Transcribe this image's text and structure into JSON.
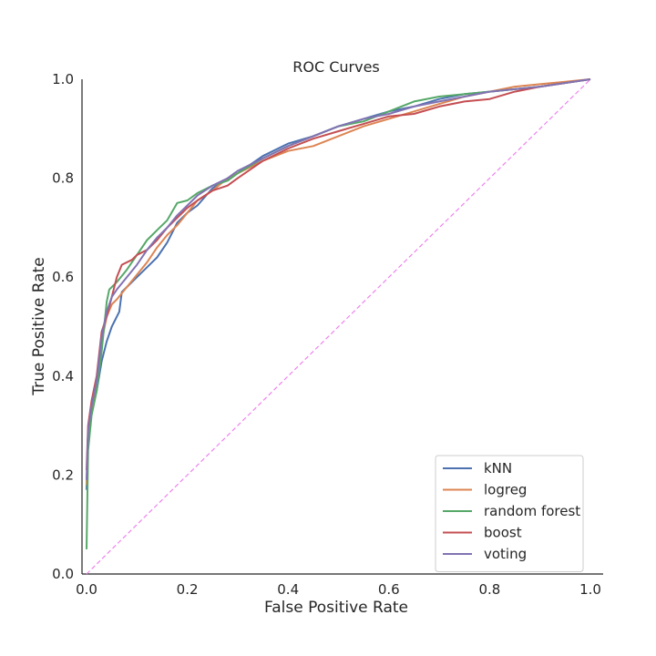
{
  "chart_data": {
    "type": "line",
    "title": "ROC Curves",
    "xlabel": "False Positive Rate",
    "ylabel": "True Positive Rate",
    "xlim": [
      0,
      1
    ],
    "ylim": [
      0,
      1
    ],
    "x_ticks": [
      "0.0",
      "0.2",
      "0.4",
      "0.6",
      "0.8",
      "1.0"
    ],
    "y_ticks": [
      "0.0",
      "0.2",
      "0.4",
      "0.6",
      "0.8",
      "1.0"
    ],
    "grid": false,
    "legend_position": "bottom-right",
    "diagonal": {
      "color": "#ee82ee",
      "style": "dashed",
      "points": [
        [
          0,
          0
        ],
        [
          1,
          1
        ]
      ]
    },
    "series": [
      {
        "name": "kNN",
        "color": "#4c72b0",
        "points": [
          [
            0,
            0.17
          ],
          [
            0.003,
            0.29
          ],
          [
            0.01,
            0.33
          ],
          [
            0.02,
            0.37
          ],
          [
            0.03,
            0.43
          ],
          [
            0.04,
            0.47
          ],
          [
            0.05,
            0.5
          ],
          [
            0.06,
            0.52
          ],
          [
            0.065,
            0.53
          ],
          [
            0.07,
            0.57
          ],
          [
            0.08,
            0.58
          ],
          [
            0.1,
            0.6
          ],
          [
            0.12,
            0.62
          ],
          [
            0.14,
            0.64
          ],
          [
            0.16,
            0.67
          ],
          [
            0.18,
            0.71
          ],
          [
            0.2,
            0.73
          ],
          [
            0.22,
            0.745
          ],
          [
            0.25,
            0.78
          ],
          [
            0.3,
            0.81
          ],
          [
            0.35,
            0.845
          ],
          [
            0.4,
            0.87
          ],
          [
            0.45,
            0.885
          ],
          [
            0.5,
            0.905
          ],
          [
            0.55,
            0.92
          ],
          [
            0.6,
            0.935
          ],
          [
            0.65,
            0.945
          ],
          [
            0.7,
            0.96
          ],
          [
            0.75,
            0.97
          ],
          [
            0.8,
            0.975
          ],
          [
            0.85,
            0.98
          ],
          [
            0.9,
            0.985
          ],
          [
            1.0,
            1.0
          ]
        ]
      },
      {
        "name": "logreg",
        "color": "#dd8452",
        "points": [
          [
            0,
            0.18
          ],
          [
            0.003,
            0.28
          ],
          [
            0.01,
            0.33
          ],
          [
            0.02,
            0.38
          ],
          [
            0.03,
            0.47
          ],
          [
            0.04,
            0.52
          ],
          [
            0.05,
            0.545
          ],
          [
            0.06,
            0.555
          ],
          [
            0.08,
            0.58
          ],
          [
            0.1,
            0.605
          ],
          [
            0.12,
            0.63
          ],
          [
            0.14,
            0.66
          ],
          [
            0.16,
            0.685
          ],
          [
            0.18,
            0.705
          ],
          [
            0.2,
            0.73
          ],
          [
            0.22,
            0.755
          ],
          [
            0.25,
            0.775
          ],
          [
            0.28,
            0.8
          ],
          [
            0.3,
            0.81
          ],
          [
            0.35,
            0.835
          ],
          [
            0.4,
            0.855
          ],
          [
            0.45,
            0.865
          ],
          [
            0.5,
            0.885
          ],
          [
            0.55,
            0.905
          ],
          [
            0.6,
            0.92
          ],
          [
            0.65,
            0.935
          ],
          [
            0.7,
            0.95
          ],
          [
            0.75,
            0.965
          ],
          [
            0.8,
            0.975
          ],
          [
            0.85,
            0.985
          ],
          [
            0.9,
            0.99
          ],
          [
            0.95,
            0.995
          ],
          [
            1.0,
            1.0
          ]
        ]
      },
      {
        "name": "random forest",
        "color": "#55a868",
        "points": [
          [
            0,
            0.05
          ],
          [
            0.003,
            0.25
          ],
          [
            0.01,
            0.32
          ],
          [
            0.02,
            0.37
          ],
          [
            0.03,
            0.45
          ],
          [
            0.04,
            0.55
          ],
          [
            0.045,
            0.575
          ],
          [
            0.06,
            0.59
          ],
          [
            0.08,
            0.615
          ],
          [
            0.1,
            0.645
          ],
          [
            0.12,
            0.675
          ],
          [
            0.14,
            0.695
          ],
          [
            0.16,
            0.715
          ],
          [
            0.18,
            0.75
          ],
          [
            0.2,
            0.755
          ],
          [
            0.22,
            0.77
          ],
          [
            0.25,
            0.785
          ],
          [
            0.28,
            0.795
          ],
          [
            0.3,
            0.81
          ],
          [
            0.35,
            0.84
          ],
          [
            0.4,
            0.865
          ],
          [
            0.45,
            0.885
          ],
          [
            0.5,
            0.905
          ],
          [
            0.55,
            0.915
          ],
          [
            0.6,
            0.935
          ],
          [
            0.65,
            0.955
          ],
          [
            0.7,
            0.965
          ],
          [
            0.75,
            0.97
          ],
          [
            0.8,
            0.975
          ],
          [
            0.85,
            0.98
          ],
          [
            0.9,
            0.985
          ],
          [
            1.0,
            1.0
          ]
        ]
      },
      {
        "name": "boost",
        "color": "#c44e52",
        "points": [
          [
            0,
            0.21
          ],
          [
            0.003,
            0.3
          ],
          [
            0.01,
            0.35
          ],
          [
            0.02,
            0.4
          ],
          [
            0.03,
            0.49
          ],
          [
            0.04,
            0.52
          ],
          [
            0.05,
            0.56
          ],
          [
            0.06,
            0.6
          ],
          [
            0.07,
            0.625
          ],
          [
            0.09,
            0.635
          ],
          [
            0.1,
            0.645
          ],
          [
            0.12,
            0.655
          ],
          [
            0.14,
            0.675
          ],
          [
            0.16,
            0.7
          ],
          [
            0.18,
            0.72
          ],
          [
            0.2,
            0.74
          ],
          [
            0.22,
            0.755
          ],
          [
            0.25,
            0.775
          ],
          [
            0.28,
            0.785
          ],
          [
            0.3,
            0.8
          ],
          [
            0.35,
            0.835
          ],
          [
            0.4,
            0.86
          ],
          [
            0.45,
            0.88
          ],
          [
            0.5,
            0.895
          ],
          [
            0.55,
            0.91
          ],
          [
            0.6,
            0.925
          ],
          [
            0.65,
            0.93
          ],
          [
            0.7,
            0.945
          ],
          [
            0.75,
            0.955
          ],
          [
            0.8,
            0.96
          ],
          [
            0.85,
            0.975
          ],
          [
            0.9,
            0.985
          ],
          [
            1.0,
            1.0
          ]
        ]
      },
      {
        "name": "voting",
        "color": "#8172b3",
        "points": [
          [
            0,
            0.19
          ],
          [
            0.003,
            0.29
          ],
          [
            0.01,
            0.34
          ],
          [
            0.02,
            0.39
          ],
          [
            0.03,
            0.48
          ],
          [
            0.04,
            0.53
          ],
          [
            0.05,
            0.56
          ],
          [
            0.06,
            0.575
          ],
          [
            0.08,
            0.6
          ],
          [
            0.1,
            0.625
          ],
          [
            0.12,
            0.655
          ],
          [
            0.14,
            0.68
          ],
          [
            0.16,
            0.7
          ],
          [
            0.18,
            0.725
          ],
          [
            0.2,
            0.745
          ],
          [
            0.22,
            0.765
          ],
          [
            0.25,
            0.785
          ],
          [
            0.28,
            0.8
          ],
          [
            0.3,
            0.815
          ],
          [
            0.35,
            0.84
          ],
          [
            0.4,
            0.865
          ],
          [
            0.45,
            0.885
          ],
          [
            0.5,
            0.905
          ],
          [
            0.55,
            0.92
          ],
          [
            0.6,
            0.93
          ],
          [
            0.65,
            0.945
          ],
          [
            0.7,
            0.955
          ],
          [
            0.75,
            0.965
          ],
          [
            0.8,
            0.975
          ],
          [
            0.85,
            0.98
          ],
          [
            0.9,
            0.985
          ],
          [
            1.0,
            1.0
          ]
        ]
      }
    ]
  }
}
